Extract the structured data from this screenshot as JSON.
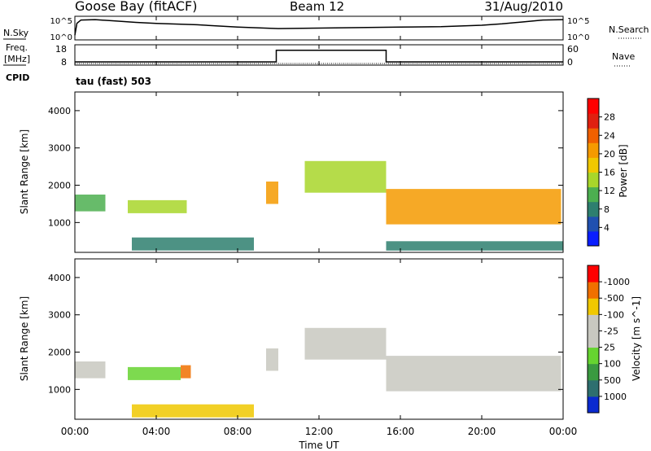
{
  "header": {
    "radar": "Goose Bay (fitACF)",
    "beam": "Beam 12",
    "date": "31/Aug/2010"
  },
  "strip_labels": {
    "nsky": "N.Sky",
    "nsearch": "N.Search",
    "freq_line1": "Freq.",
    "freq_line2": "[MHz]",
    "nave": "Nave",
    "cpid": "CPID",
    "cpid_value": "tau (fast) 503",
    "noise_top": "10^5",
    "noise_bottom": "10^0",
    "freq_top": "18",
    "freq_bottom": "8",
    "nave_top": "60",
    "nave_bottom": "0"
  },
  "chart_data": [
    {
      "type": "line",
      "panel": "noise",
      "series": [
        {
          "name": "N.Sky",
          "x": [
            0,
            0.1,
            0.3,
            1,
            2,
            3,
            4,
            6,
            8,
            10,
            12,
            14,
            16,
            18,
            20,
            21,
            22,
            23,
            24
          ],
          "y": [
            1,
            3.5,
            4.2,
            4.3,
            4.0,
            3.7,
            3.5,
            3.2,
            2.7,
            2.4,
            2.5,
            2.6,
            2.7,
            2.8,
            3.1,
            3.4,
            3.8,
            4.2,
            4.3
          ]
        }
      ],
      "ylim": [
        0,
        5
      ]
    },
    {
      "type": "line",
      "panel": "freq_nave",
      "series": [
        {
          "name": "Freq.",
          "x": [
            0,
            9.9,
            9.9,
            15.3,
            15.3,
            24
          ],
          "y": [
            9.6,
            9.6,
            15.3,
            15.3,
            9.6,
            9.6
          ]
        },
        {
          "name": "Nave",
          "x": [
            0,
            24
          ],
          "y": [
            8,
            8
          ]
        }
      ],
      "ylim": [
        8,
        18
      ]
    },
    {
      "type": "heatmap",
      "panel": "power",
      "ylabel": "Slant Range [km]",
      "colorbar_label": "Power [dB]",
      "colorbar_ticks": [
        "4",
        "8",
        "12",
        "16",
        "20",
        "24",
        "28"
      ],
      "colorbar_colors": [
        "#0a1eff",
        "#2050b0",
        "#2e7f6f",
        "#4caf50",
        "#a8d62a",
        "#f0c800",
        "#f59a00",
        "#f06000",
        "#e02010",
        "#ff0000"
      ],
      "ylim": [
        200,
        4500
      ],
      "yticks": [
        1000,
        2000,
        3000,
        4000
      ],
      "regions": [
        {
          "t0": 0,
          "t1": 1.5,
          "r0": 1300,
          "r1": 1750,
          "power": 11
        },
        {
          "t0": 2.6,
          "t1": 5.5,
          "r0": 1250,
          "r1": 1600,
          "power": 13
        },
        {
          "t0": 2.8,
          "t1": 8.8,
          "r0": 250,
          "r1": 600,
          "power": 8
        },
        {
          "t0": 9.4,
          "t1": 10.0,
          "r0": 1500,
          "r1": 2100,
          "power": 19
        },
        {
          "t0": 11.3,
          "t1": 15.3,
          "r0": 1800,
          "r1": 2650,
          "power": 12
        },
        {
          "t0": 15.3,
          "t1": 23.9,
          "r0": 950,
          "r1": 1900,
          "power": 20
        },
        {
          "t0": 15.3,
          "t1": 24,
          "r0": 250,
          "r1": 500,
          "power": 7
        }
      ]
    },
    {
      "type": "heatmap",
      "panel": "velocity",
      "ylabel": "Slant Range [km]",
      "colorbar_label": "Velocity [m s^-1]",
      "colorbar_ticks": [
        "1000",
        "500",
        "100",
        "25",
        "-25",
        "-100",
        "-500",
        "-1000"
      ],
      "colorbar_colors": [
        "#0a2ad0",
        "#2e6f6f",
        "#3a9a40",
        "#66d430",
        "#c8c8c0",
        "#c8c8c0",
        "#f0c800",
        "#f07000",
        "#ff0000"
      ],
      "ylim": [
        200,
        4500
      ],
      "yticks": [
        1000,
        2000,
        3000,
        4000
      ],
      "regions": [
        {
          "t0": 0,
          "t1": 1.5,
          "r0": 1300,
          "r1": 1750,
          "velocity": 0
        },
        {
          "t0": 2.6,
          "t1": 5.2,
          "r0": 1250,
          "r1": 1600,
          "velocity": 150
        },
        {
          "t0": 5.2,
          "t1": 5.7,
          "r0": 1300,
          "r1": 1650,
          "velocity": -300
        },
        {
          "t0": 2.8,
          "t1": 8.8,
          "r0": 250,
          "r1": 600,
          "velocity": -60
        },
        {
          "t0": 9.4,
          "t1": 10.0,
          "r0": 1500,
          "r1": 2100,
          "velocity": 0
        },
        {
          "t0": 11.3,
          "t1": 15.3,
          "r0": 1800,
          "r1": 2650,
          "velocity": 0
        },
        {
          "t0": 15.3,
          "t1": 23.9,
          "r0": 950,
          "r1": 1900,
          "velocity": 0
        }
      ]
    }
  ],
  "xaxis": {
    "label": "Time UT",
    "ticks": [
      "00:00",
      "04:00",
      "08:00",
      "12:00",
      "16:00",
      "20:00",
      "00:00"
    ],
    "xlim": [
      0,
      24
    ]
  }
}
